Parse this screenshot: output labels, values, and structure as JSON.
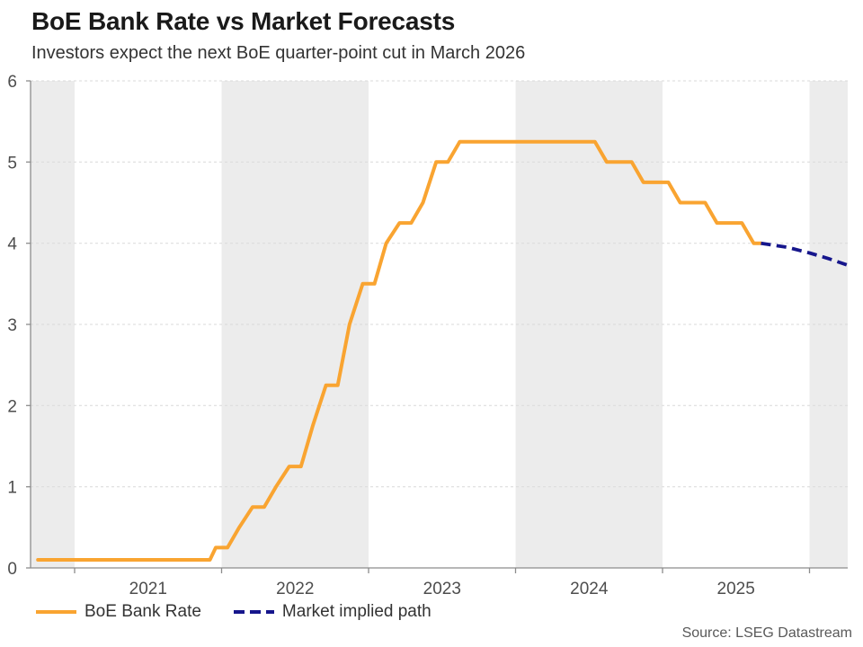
{
  "chart_data": {
    "type": "line",
    "title": "BoE Bank Rate vs Market Forecasts",
    "subtitle": "Investors expect the next BoE quarter-point cut in March 2026",
    "source": "Source: LSEG Datastream",
    "xlabel": "",
    "ylabel": "",
    "x_domain": [
      2020.7,
      2026.26
    ],
    "y_domain": [
      0,
      6
    ],
    "y_ticks": [
      0,
      1,
      2,
      3,
      4,
      5,
      6
    ],
    "x_year_ticks": [
      2021,
      2022,
      2023,
      2024,
      2025,
      2026
    ],
    "x_labels": [
      {
        "text": "2021",
        "t": 2021.5
      },
      {
        "text": "2022",
        "t": 2022.5
      },
      {
        "text": "2023",
        "t": 2023.5
      },
      {
        "text": "2024",
        "t": 2024.5
      },
      {
        "text": "2025",
        "t": 2025.5
      }
    ],
    "shaded_year_bands": [
      [
        2020.7,
        2021.0
      ],
      [
        2022.0,
        2023.0
      ],
      [
        2024.0,
        2025.0
      ],
      [
        2026.0,
        2026.26
      ]
    ],
    "grid": true,
    "legend_position": "bottom-left",
    "series": [
      {
        "name": "BoE Bank Rate",
        "style": "solid",
        "color": "#F9A431",
        "points": [
          [
            2020.75,
            0.1
          ],
          [
            2021.92,
            0.1
          ],
          [
            2021.96,
            0.25
          ],
          [
            2022.04,
            0.25
          ],
          [
            2022.12,
            0.5
          ],
          [
            2022.21,
            0.75
          ],
          [
            2022.29,
            0.75
          ],
          [
            2022.37,
            1.0
          ],
          [
            2022.46,
            1.25
          ],
          [
            2022.54,
            1.25
          ],
          [
            2022.62,
            1.75
          ],
          [
            2022.71,
            2.25
          ],
          [
            2022.79,
            2.25
          ],
          [
            2022.87,
            3.0
          ],
          [
            2022.96,
            3.5
          ],
          [
            2023.04,
            3.5
          ],
          [
            2023.12,
            4.0
          ],
          [
            2023.21,
            4.25
          ],
          [
            2023.29,
            4.25
          ],
          [
            2023.37,
            4.5
          ],
          [
            2023.46,
            5.0
          ],
          [
            2023.54,
            5.0
          ],
          [
            2023.62,
            5.25
          ],
          [
            2024.54,
            5.25
          ],
          [
            2024.62,
            5.0
          ],
          [
            2024.79,
            5.0
          ],
          [
            2024.87,
            4.75
          ],
          [
            2025.04,
            4.75
          ],
          [
            2025.12,
            4.5
          ],
          [
            2025.29,
            4.5
          ],
          [
            2025.37,
            4.25
          ],
          [
            2025.54,
            4.25
          ],
          [
            2025.62,
            4.0
          ],
          [
            2025.67,
            4.0
          ]
        ]
      },
      {
        "name": "Market implied path",
        "style": "dashed",
        "color": "#16168C",
        "points": [
          [
            2025.67,
            4.0
          ],
          [
            2025.85,
            3.95
          ],
          [
            2026.0,
            3.88
          ],
          [
            2026.13,
            3.81
          ],
          [
            2026.26,
            3.73
          ]
        ]
      }
    ],
    "colors": {
      "band": "#ECECEC",
      "grid": "#D9D9D9",
      "axis": "#8C8C8C",
      "tick_label": "#4D4D4D",
      "title": "#1A1A1A",
      "subtitle": "#333333",
      "legend_text": "#333333",
      "source_text": "#595959"
    }
  }
}
